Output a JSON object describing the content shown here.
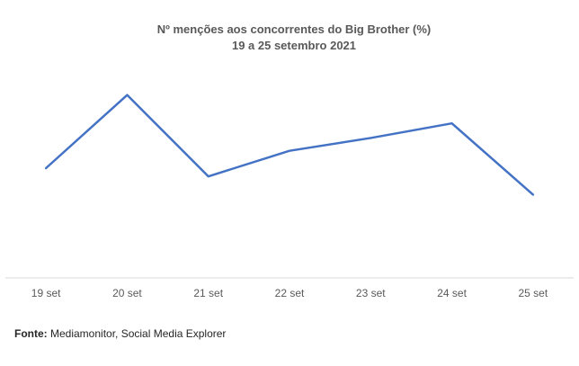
{
  "chart_data": {
    "type": "line",
    "title": "Nº menções aos concorrentes do Big Brother (%)",
    "subtitle": "19 a 25 setembro 2021",
    "categories": [
      "19 set",
      "20 set",
      "21 set",
      "22 set",
      "23 set",
      "24 set",
      "25 set"
    ],
    "series": [
      {
        "values": [
          60.0,
          100.0,
          55.5,
          69.5,
          76.5,
          84.5,
          45.5
        ]
      }
    ],
    "ylim": [
      0,
      120
    ],
    "grid": false,
    "legend": "none",
    "line_color": "#4472C4",
    "axis_color": "#D9D9D9"
  },
  "source": {
    "label": "Fonte:",
    "text": "Mediamonitor, Social Media Explorer"
  }
}
